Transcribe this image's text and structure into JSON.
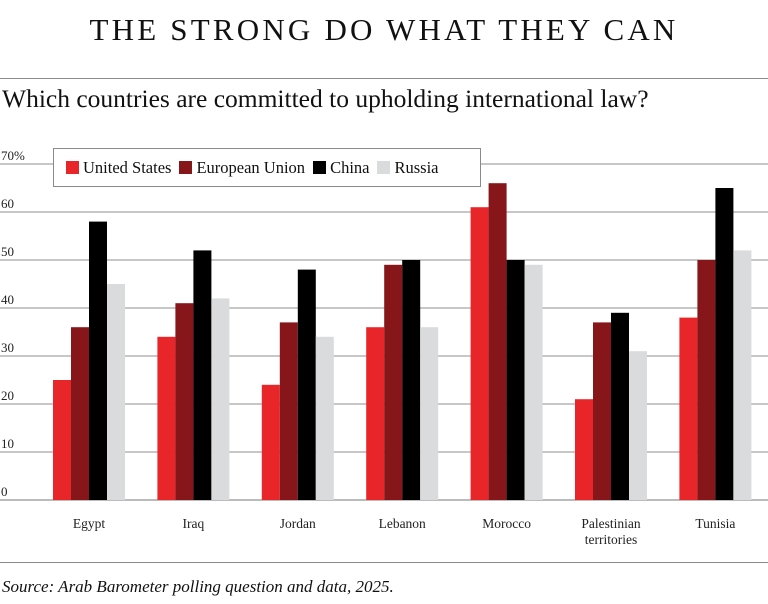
{
  "header": {
    "title": "THE STRONG DO WHAT THEY CAN",
    "subtitle": "Which countries are committed to upholding international law?"
  },
  "footer": {
    "source": "Source: Arab Barometer polling question and data, 2025."
  },
  "chart_data": {
    "type": "bar",
    "title": "Which countries are committed to upholding international law?",
    "xlabel": "",
    "ylabel": "",
    "ylim": [
      0,
      70
    ],
    "yticks": [
      0,
      10,
      20,
      30,
      40,
      50,
      60,
      70
    ],
    "ytick_labels": [
      "0",
      "10",
      "20",
      "30",
      "40",
      "50",
      "60",
      "70%"
    ],
    "grid": true,
    "legend_position": "top-left",
    "categories": [
      "Egypt",
      "Iraq",
      "Jordan",
      "Lebanon",
      "Morocco",
      "Palestinian territories",
      "Tunisia"
    ],
    "category_label_lines": [
      [
        "Egypt"
      ],
      [
        "Iraq"
      ],
      [
        "Jordan"
      ],
      [
        "Lebanon"
      ],
      [
        "Morocco"
      ],
      [
        "Palestinian",
        "territories"
      ],
      [
        "Tunisia"
      ]
    ],
    "series": [
      {
        "name": "United States",
        "color": "#e8262a",
        "values": [
          25,
          34,
          24,
          36,
          61,
          21,
          38
        ]
      },
      {
        "name": "European Union",
        "color": "#86161a",
        "values": [
          36,
          41,
          37,
          49,
          66,
          37,
          50
        ]
      },
      {
        "name": "China",
        "color": "#000000",
        "values": [
          58,
          52,
          48,
          50,
          50,
          39,
          65
        ]
      },
      {
        "name": "Russia",
        "color": "#dadbdd",
        "values": [
          45,
          42,
          34,
          36,
          49,
          31,
          52
        ]
      }
    ]
  }
}
